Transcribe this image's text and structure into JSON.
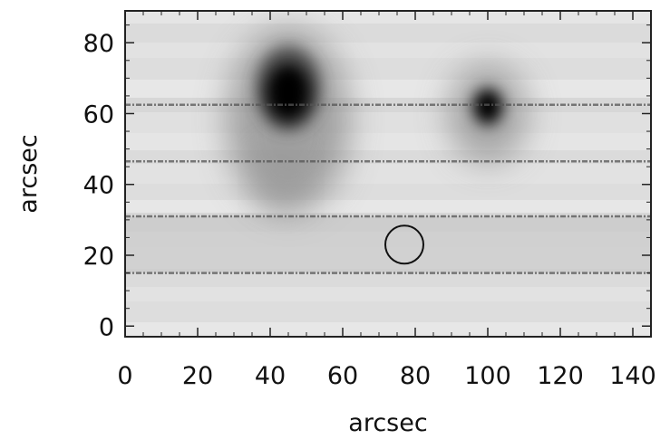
{
  "chart_data": {
    "type": "heatmap",
    "title": "",
    "xlabel": "arcsec",
    "ylabel": "arcsec",
    "xlim": [
      0,
      145
    ],
    "ylim": [
      -3,
      89
    ],
    "x_ticks": [
      "0",
      "20",
      "40",
      "60",
      "80",
      "100",
      "120",
      "140"
    ],
    "y_ticks": [
      "0",
      "20",
      "40",
      "60",
      "80"
    ],
    "colormap": "grayscale",
    "background_level": 0.2,
    "features": [
      {
        "kind": "dark-core",
        "x": 45,
        "y": 66
      },
      {
        "kind": "dark-core",
        "x": 100,
        "y": 62
      }
    ],
    "scan_lines_y": [
      62.5,
      46.5,
      31,
      15
    ],
    "circle_marker": {
      "x": 77,
      "y": 23,
      "radius_arcsec": 5
    },
    "grid": false
  }
}
